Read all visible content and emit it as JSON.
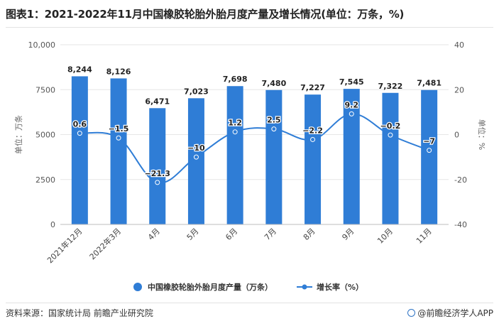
{
  "title": "图表1：2021-2022年11月中国橡胶轮胎外胎月度产量及增长情况(单位：万条，%)",
  "source": "资料来源：国家统计局 前瞻产业研究院",
  "brand": "@前瞻经济学人APP",
  "colors": {
    "bar": "#2f7dd6",
    "line": "#2f7dd6",
    "grid": "#e6e6e6"
  },
  "chart_data": {
    "type": "bar",
    "categories": [
      "2021年12月",
      "2022年3月",
      "4月",
      "5月",
      "6月",
      "7月",
      "8月",
      "9月",
      "10月",
      "11月"
    ],
    "series": [
      {
        "name": "中国橡胶轮胎外胎月度产量（万条）",
        "type": "bar",
        "axis": "left",
        "values": [
          8244,
          8126,
          6471,
          7023,
          7698,
          7480,
          7227,
          7545,
          7322,
          7481
        ],
        "labels": [
          "8,244",
          "8,126",
          "6,471",
          "7,023",
          "7,698",
          "7,480",
          "7,227",
          "7,545",
          "7,322",
          "7,481"
        ]
      },
      {
        "name": "增长率（%）",
        "type": "line",
        "axis": "right",
        "values": [
          0.6,
          -1.5,
          -21.3,
          -10,
          1.2,
          2.5,
          -2.2,
          9.2,
          -0.2,
          -7
        ],
        "labels": [
          "0.6",
          "−1.5",
          "−21.3",
          "−10",
          "1.2",
          "2.5",
          "−2.2",
          "9.2",
          "−0.2",
          "−7"
        ]
      }
    ],
    "ylabel": "单位：万条",
    "y2label": "单位：%",
    "ylim": [
      0,
      10000
    ],
    "y2lim": [
      -40,
      40
    ],
    "yticks": [
      "0",
      "2500",
      "5000",
      "7500",
      "10,000"
    ],
    "y2ticks": [
      "-40",
      "-20",
      "0",
      "20",
      "40"
    ],
    "grid": true,
    "legend_position": "bottom"
  }
}
